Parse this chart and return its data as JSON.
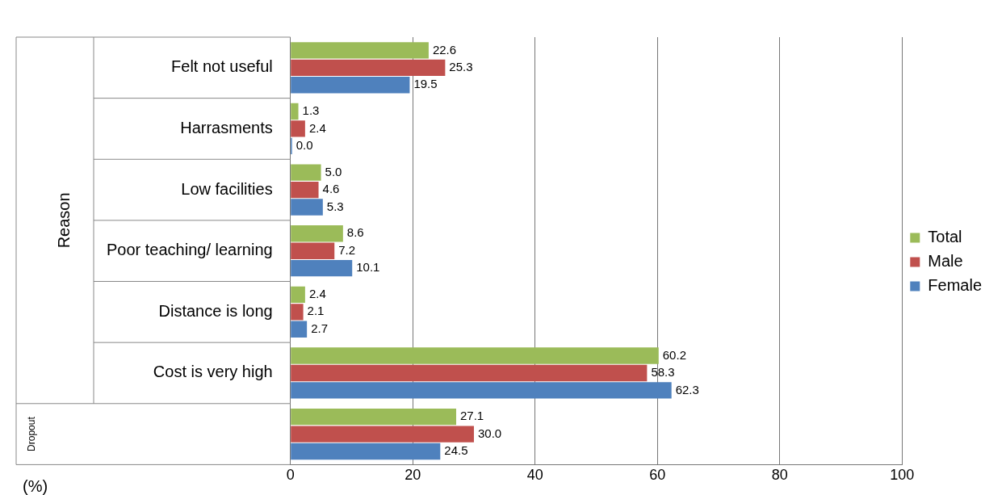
{
  "chart_data": {
    "type": "bar",
    "orientation": "horizontal",
    "categories": [
      "Felt not useful",
      "Harrasments",
      "Low facilities",
      "Poor teaching/ learning",
      "Distance is long",
      "Cost is very high",
      null
    ],
    "series": [
      {
        "name": "Total",
        "color": "#9bbb59",
        "values": [
          22.6,
          1.3,
          5.0,
          8.6,
          2.4,
          60.2,
          27.1
        ],
        "value_labels": [
          "22.6",
          "1.3",
          "5.0",
          "8.6",
          "2.4",
          "60.2",
          "27.1"
        ]
      },
      {
        "name": "Male",
        "color": "#c0504d",
        "values": [
          25.3,
          2.4,
          4.6,
          7.2,
          2.1,
          58.3,
          30.0
        ],
        "value_labels": [
          "25.3",
          "2.4",
          "4.6",
          "7.2",
          "2.1",
          "58.3",
          "30.0"
        ]
      },
      {
        "name": "Female",
        "color": "#4f81bd",
        "values": [
          19.5,
          0.0,
          5.3,
          10.1,
          2.7,
          62.3,
          24.5
        ],
        "value_labels": [
          "19.5",
          "0.0",
          "5.3",
          "10.1",
          "2.7",
          "62.3",
          "24.5"
        ]
      }
    ],
    "xlim": [
      0,
      100
    ],
    "xticks": [
      0,
      20,
      40,
      60,
      80,
      100
    ],
    "grid": "x",
    "legend": "right",
    "annotations": [
      "Reason",
      "Dropout",
      "(%)"
    ]
  }
}
